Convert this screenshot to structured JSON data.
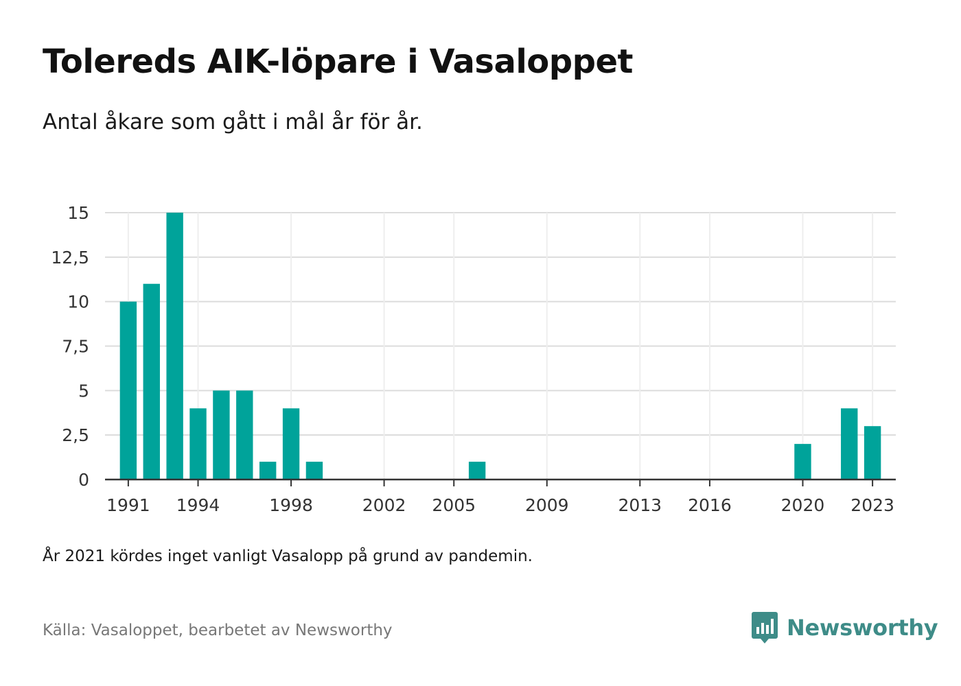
{
  "title": "Tolereds AIK-löpare i Vasaloppet",
  "subtitle": "Antal åkare som gått i mål år för år.",
  "note": "År 2021 kördes inget vanligt Vasalopp på grund av pandemin.",
  "source": "Källa: Vasaloppet, bearbetet av Newsworthy",
  "brand": {
    "name": "Newsworthy",
    "icon": "newsworthy-logo-icon",
    "color": "#3e8c88"
  },
  "chart_data": {
    "type": "bar",
    "x": [
      1991,
      1992,
      1993,
      1994,
      1995,
      1996,
      1997,
      1998,
      1999,
      2006,
      2020,
      2022,
      2023
    ],
    "values": [
      10,
      11,
      15,
      4,
      5,
      5,
      1,
      4,
      1,
      1,
      2,
      4,
      3
    ],
    "x_ticks": [
      "1991",
      "1994",
      "1998",
      "2002",
      "2005",
      "2009",
      "2013",
      "2016",
      "2020",
      "2023"
    ],
    "y_ticks": [
      "0",
      "2,5",
      "5",
      "7,5",
      "10",
      "12,5",
      "15"
    ],
    "y_tick_values": [
      0,
      2.5,
      5,
      7.5,
      10,
      12.5,
      15
    ],
    "ylim": [
      0,
      15
    ],
    "xlim": [
      1990,
      2024
    ],
    "grid": true,
    "bar_color": "#00a39a"
  }
}
